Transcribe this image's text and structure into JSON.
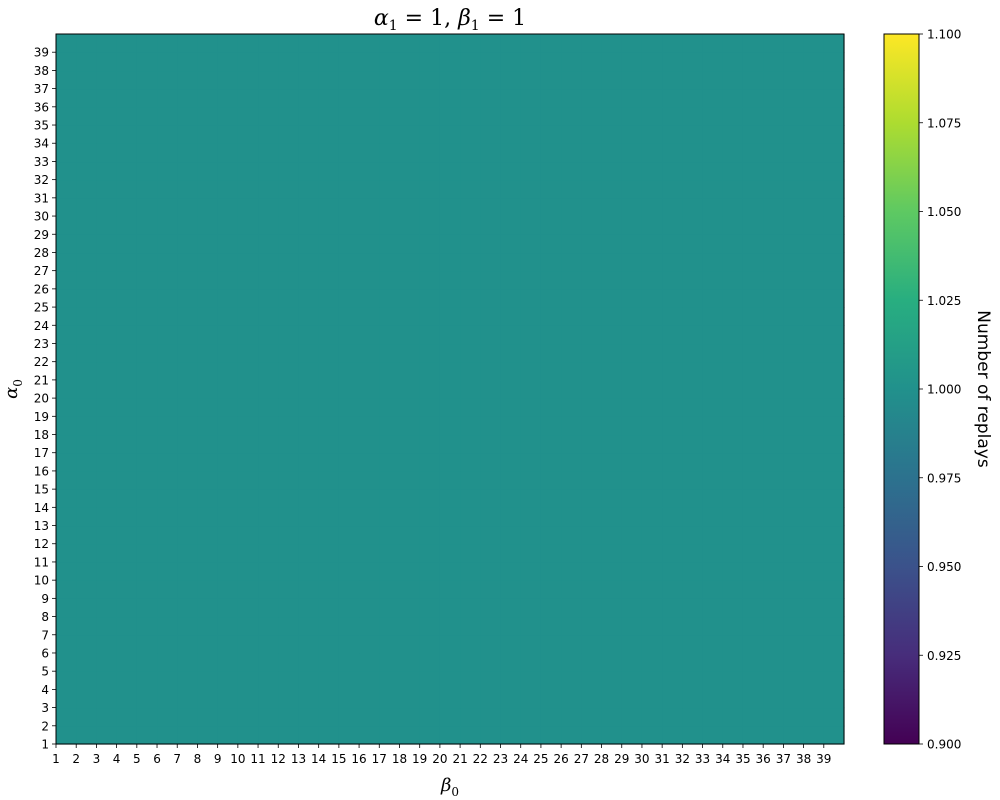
{
  "chart_data": {
    "type": "heatmap",
    "title": {
      "alpha_sub": "1",
      "alpha_val": "1",
      "beta_sub": "1",
      "beta_val": "1"
    },
    "xlabel": {
      "symbol": "β",
      "sub": "0"
    },
    "ylabel": {
      "symbol": "α",
      "sub": "0"
    },
    "x_categories": [
      "1",
      "2",
      "3",
      "4",
      "5",
      "6",
      "7",
      "8",
      "9",
      "10",
      "11",
      "12",
      "13",
      "14",
      "15",
      "16",
      "17",
      "18",
      "19",
      "20",
      "21",
      "22",
      "23",
      "24",
      "25",
      "26",
      "27",
      "28",
      "29",
      "30",
      "31",
      "32",
      "33",
      "34",
      "35",
      "36",
      "37",
      "38",
      "39"
    ],
    "y_categories": [
      "1",
      "2",
      "3",
      "4",
      "5",
      "6",
      "7",
      "8",
      "9",
      "10",
      "11",
      "12",
      "13",
      "14",
      "15",
      "16",
      "17",
      "18",
      "19",
      "20",
      "21",
      "22",
      "23",
      "24",
      "25",
      "26",
      "27",
      "28",
      "29",
      "30",
      "31",
      "32",
      "33",
      "34",
      "35",
      "36",
      "37",
      "38",
      "39"
    ],
    "value": 1.0,
    "colormap": "viridis",
    "cell_color": "#21918c",
    "colorbar": {
      "label": "Number of replays",
      "range": [
        0.9,
        1.1
      ],
      "ticks": [
        "0.900",
        "0.925",
        "0.950",
        "0.975",
        "1.000",
        "1.025",
        "1.050",
        "1.075",
        "1.100"
      ]
    }
  }
}
